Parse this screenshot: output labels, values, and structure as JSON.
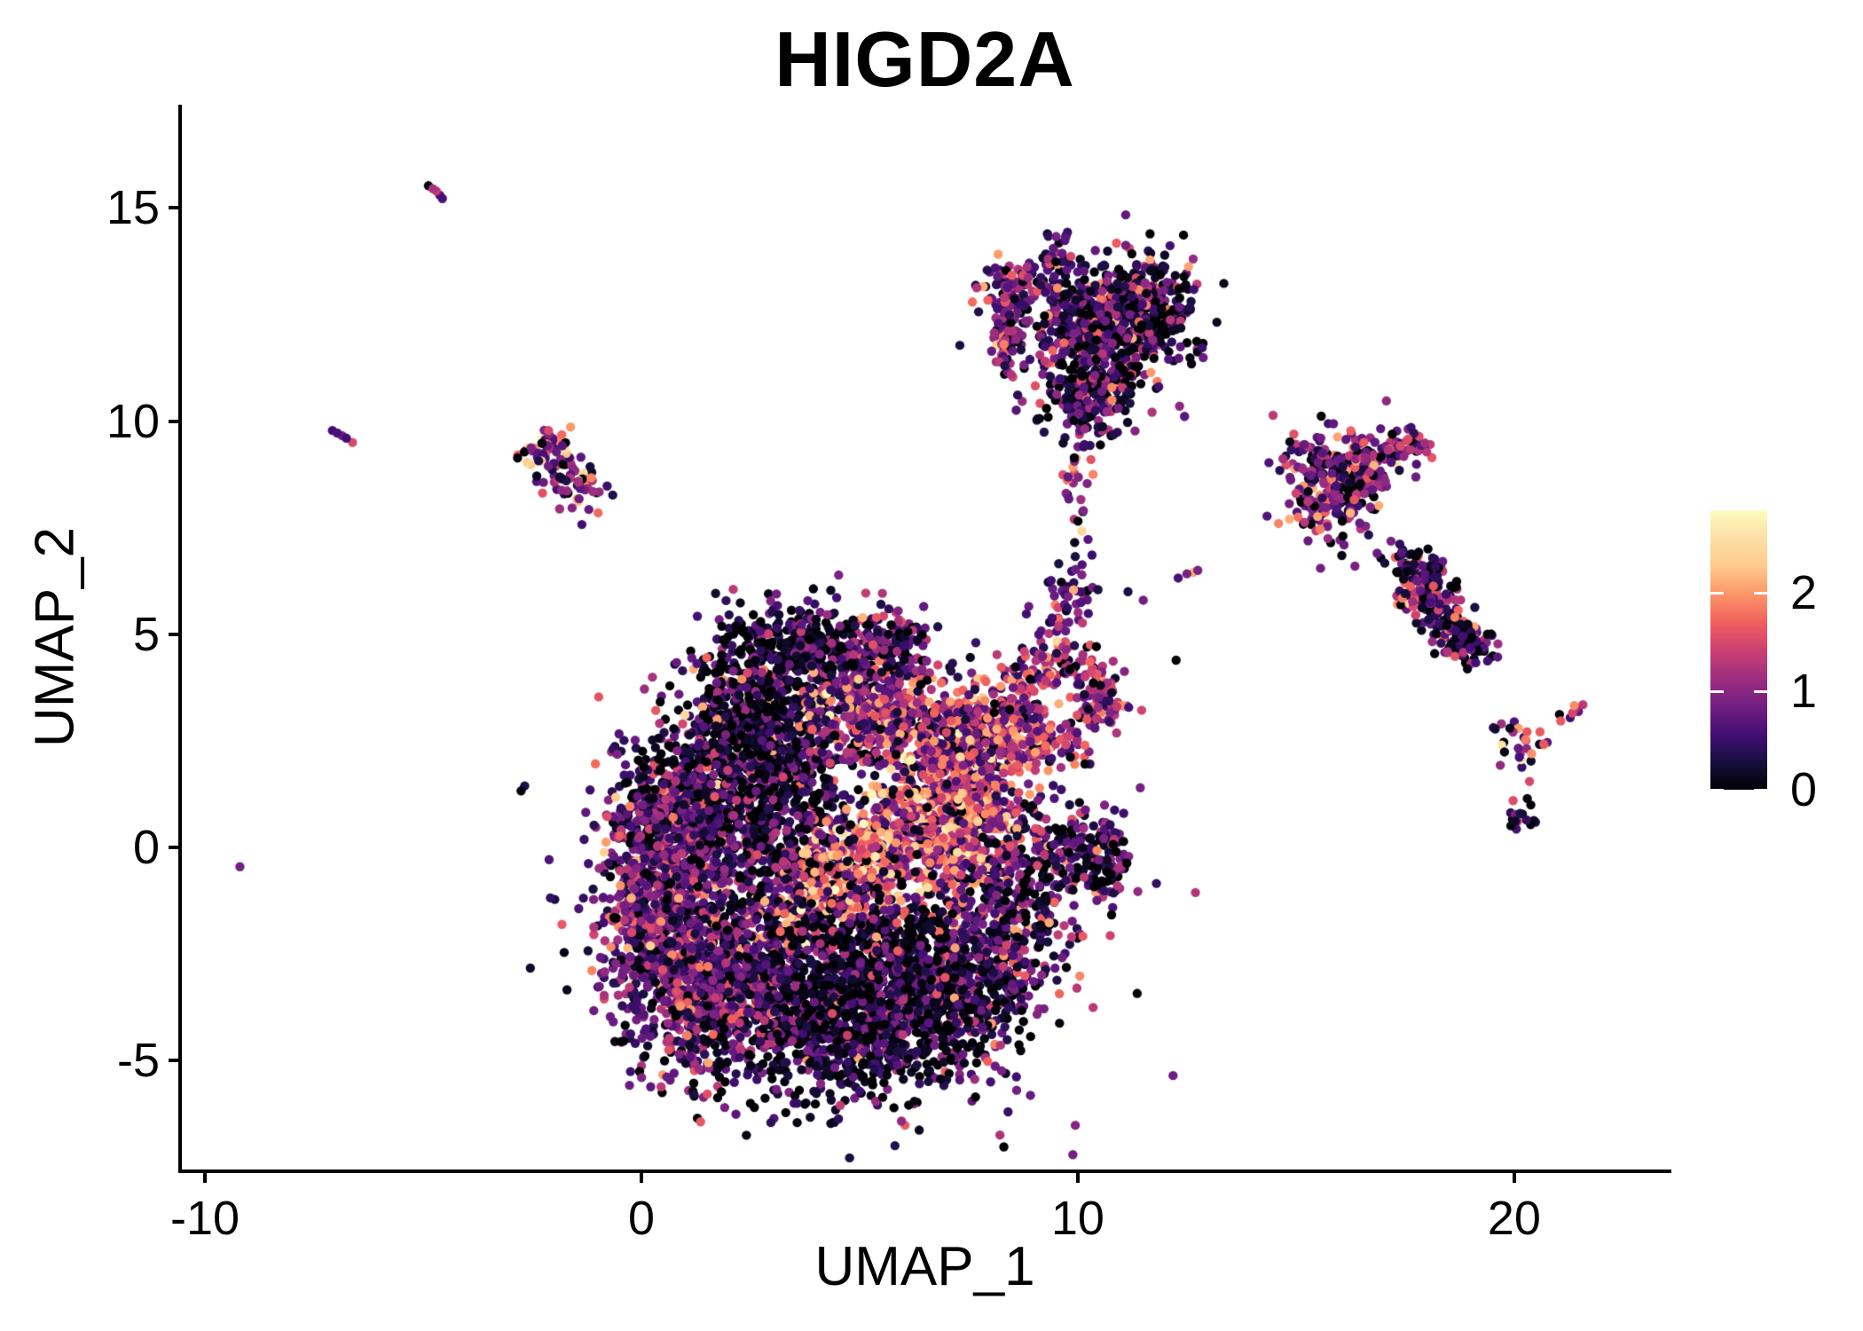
{
  "figure": {
    "background": "#ffffff"
  },
  "chart_data": {
    "type": "scatter",
    "title": "HIGD2A",
    "xlabel": "UMAP_1",
    "ylabel": "UMAP_2",
    "xlim": [
      -10.53,
      23.52
    ],
    "ylim": [
      -7.55,
      17.42
    ],
    "xticks": [
      "-10",
      "0",
      "10",
      "20"
    ],
    "xtick_values": [
      -10,
      0,
      10,
      20
    ],
    "yticks": [
      "-5",
      "0",
      "5",
      "10",
      "15"
    ],
    "ytick_values": [
      -5,
      0,
      5,
      10,
      15
    ],
    "grid": false,
    "point_radius_px": 5.2,
    "axis_color": "#000000",
    "text_color": "#000000",
    "legend": {
      "position": "right",
      "ticks": [
        "0",
        "1",
        "2"
      ],
      "tick_values": [
        0,
        1,
        2
      ],
      "vmin": 0,
      "vmax": 2.84
    },
    "colormap": {
      "name": "magma",
      "stops": [
        [
          0,
          "#000004"
        ],
        [
          0.1,
          "#180f3e"
        ],
        [
          0.2,
          "#440f76"
        ],
        [
          0.3,
          "#721f81"
        ],
        [
          0.4,
          "#9e2f7f"
        ],
        [
          0.5,
          "#cd4071"
        ],
        [
          0.6,
          "#f1605d"
        ],
        [
          0.7,
          "#fd9668"
        ],
        [
          0.8,
          "#feca8d"
        ],
        [
          0.9,
          "#fcdfa4"
        ],
        [
          1,
          "#fcfdbf"
        ]
      ]
    },
    "seed": 42,
    "expression_bins": [
      0.02,
      0.4,
      0.8,
      1.2,
      1.6,
      2.0,
      2.4,
      2.75
    ],
    "profiles": {
      "dark": [
        58,
        22,
        12,
        5,
        2,
        1,
        0,
        0
      ],
      "mixdark": [
        38,
        26,
        20,
        10,
        4,
        2,
        0,
        0
      ],
      "purple": [
        16,
        24,
        30,
        18,
        8,
        3,
        1,
        0
      ],
      "pinkish": [
        8,
        14,
        22,
        26,
        18,
        8,
        3,
        1
      ],
      "hot": [
        4,
        7,
        13,
        20,
        26,
        20,
        8,
        2
      ],
      "veryhot": [
        2,
        4,
        8,
        14,
        24,
        28,
        14,
        6
      ],
      "colorful": [
        14,
        16,
        18,
        16,
        14,
        12,
        7,
        3
      ],
      "bmain": [
        30,
        26,
        22,
        13,
        6,
        3,
        0,
        0
      ],
      "cblob": [
        12,
        14,
        20,
        20,
        14,
        12,
        6,
        2
      ],
      "gmain": [
        18,
        20,
        25,
        20,
        11,
        5,
        1,
        0
      ],
      "hprof": [
        32,
        27,
        22,
        13,
        5,
        1,
        0,
        0
      ],
      "iprof": [
        30,
        30,
        25,
        10,
        5,
        0,
        0,
        0
      ]
    },
    "clusters": [
      {
        "shape": "gauss",
        "c": [
          1.0,
          -1.3
        ],
        "s": [
          0.95,
          1.8
        ],
        "n": 1050,
        "profile": "purple"
      },
      {
        "shape": "gauss",
        "c": [
          0.1,
          -0.9
        ],
        "s": [
          0.45,
          1.2
        ],
        "n": 260,
        "profile": "purple"
      },
      {
        "shape": "gauss",
        "c": [
          0.8,
          1.0
        ],
        "s": [
          0.65,
          0.7
        ],
        "n": 260,
        "profile": "mixdark"
      },
      {
        "shape": "gauss",
        "c": [
          2.6,
          2.7
        ],
        "s": [
          0.85,
          0.95
        ],
        "n": 620,
        "profile": "dark"
      },
      {
        "shape": "gauss",
        "c": [
          3.7,
          4.7
        ],
        "s": [
          1.15,
          0.5
        ],
        "n": 340,
        "profile": "dark"
      },
      {
        "shape": "gauss",
        "c": [
          5.3,
          4.4
        ],
        "s": [
          0.75,
          0.55
        ],
        "n": 250,
        "profile": "purple"
      },
      {
        "shape": "gauss",
        "c": [
          5.5,
          3.0
        ],
        "s": [
          1.15,
          0.5
        ],
        "n": 380,
        "profile": "pinkish"
      },
      {
        "shape": "gauss",
        "c": [
          3.3,
          0.7
        ],
        "s": [
          0.95,
          1.0
        ],
        "n": 400,
        "profile": "dark"
      },
      {
        "shape": "line",
        "a": [
          3.3,
          -1.4
        ],
        "b": [
          6.2,
          0.5
        ],
        "w": 0.55,
        "n": 480,
        "profile": "veryhot"
      },
      {
        "shape": "gauss",
        "c": [
          7.0,
          0.7
        ],
        "s": [
          0.85,
          1.05
        ],
        "n": 650,
        "profile": "hot"
      },
      {
        "shape": "gauss",
        "c": [
          7.35,
          2.3
        ],
        "s": [
          0.5,
          0.7
        ],
        "n": 240,
        "profile": "pinkish"
      },
      {
        "shape": "gauss",
        "c": [
          4.8,
          -2.7
        ],
        "s": [
          1.35,
          0.95
        ],
        "n": 780,
        "profile": "dark"
      },
      {
        "shape": "gauss",
        "c": [
          4.7,
          -4.5
        ],
        "s": [
          1.45,
          0.75
        ],
        "n": 650,
        "profile": "dark"
      },
      {
        "shape": "gauss",
        "c": [
          2.0,
          -3.4
        ],
        "s": [
          1.05,
          0.8
        ],
        "n": 480,
        "profile": "purple"
      },
      {
        "shape": "gauss",
        "c": [
          7.2,
          -3.1
        ],
        "s": [
          1.0,
          0.9
        ],
        "n": 480,
        "profile": "mixdark"
      },
      {
        "shape": "gauss",
        "c": [
          8.6,
          -1.0
        ],
        "s": [
          0.75,
          1.15
        ],
        "n": 360,
        "profile": "mixdark"
      },
      {
        "shape": "gauss",
        "c": [
          10.4,
          -0.2
        ],
        "s": [
          0.45,
          0.62
        ],
        "n": 140,
        "profile": "mixdark"
      },
      {
        "shape": "gauss",
        "c": [
          4.8,
          -1.0
        ],
        "s": [
          2.9,
          2.5
        ],
        "n": 330,
        "profile": "mixdark"
      },
      {
        "shape": "ring",
        "c": [
          9.6,
          3.4
        ],
        "r": 1.05,
        "jit": 0.3,
        "arc": [
          -40,
          300
        ],
        "n": 330,
        "profile": "pinkish"
      },
      {
        "shape": "gauss",
        "c": [
          8.3,
          2.6
        ],
        "s": [
          0.5,
          0.6
        ],
        "n": 170,
        "profile": "hot"
      },
      {
        "shape": "line",
        "a": [
          9.45,
          5.1
        ],
        "b": [
          9.95,
          6.35
        ],
        "w": 0.3,
        "n": 55,
        "profile": "purple"
      },
      {
        "shape": "line",
        "a": [
          10.05,
          6.9
        ],
        "b": [
          9.85,
          8.55
        ],
        "w": 0.15,
        "n": 16,
        "profile": "purple"
      },
      {
        "shape": "gauss",
        "c": [
          10.55,
          12.35
        ],
        "s": [
          0.95,
          0.72
        ],
        "n": 600,
        "profile": "bmain"
      },
      {
        "shape": "line",
        "a": [
          8.3,
          11.3
        ],
        "b": [
          8.5,
          13.0
        ],
        "w": 0.18,
        "n": 80,
        "profile": "purple"
      },
      {
        "shape": "gauss",
        "c": [
          8.65,
          13.15
        ],
        "s": [
          0.42,
          0.33
        ],
        "n": 90,
        "profile": "purple"
      },
      {
        "shape": "gauss",
        "c": [
          9.6,
          14.15
        ],
        "s": [
          0.18,
          0.25
        ],
        "n": 14,
        "profile": "purple"
      },
      {
        "shape": "gauss",
        "c": [
          10.3,
          10.7
        ],
        "s": [
          0.6,
          0.52
        ],
        "n": 200,
        "profile": "mixdark"
      },
      {
        "shape": "line",
        "a": [
          10.1,
          10.0
        ],
        "b": [
          9.85,
          8.6
        ],
        "w": 0.12,
        "n": 14,
        "profile": "mixdark"
      },
      {
        "shape": "gauss",
        "c": [
          11.75,
          12.7
        ],
        "s": [
          0.45,
          0.7
        ],
        "n": 130,
        "profile": "dark"
      },
      {
        "shape": "line",
        "a": [
          -2.75,
          9.2
        ],
        "b": [
          -1.85,
          9.55
        ],
        "w": 0.2,
        "n": 45,
        "profile": "colorful"
      },
      {
        "shape": "gauss",
        "c": [
          -1.95,
          8.85
        ],
        "s": [
          0.3,
          0.28
        ],
        "n": 28,
        "profile": "purple"
      },
      {
        "shape": "gauss",
        "c": [
          -1.35,
          8.35
        ],
        "s": [
          0.36,
          0.26
        ],
        "n": 40,
        "profile": "cblob"
      },
      {
        "shape": "gauss",
        "c": [
          16.1,
          8.9
        ],
        "s": [
          0.72,
          0.5
        ],
        "n": 220,
        "profile": "gmain"
      },
      {
        "shape": "line",
        "a": [
          16.75,
          9.1
        ],
        "b": [
          17.95,
          9.6
        ],
        "w": 0.18,
        "n": 60,
        "profile": "pinkish"
      },
      {
        "shape": "gauss",
        "c": [
          15.85,
          7.95
        ],
        "s": [
          0.42,
          0.42
        ],
        "n": 75,
        "profile": "purple"
      },
      {
        "shape": "points",
        "pts": [
          [
            14.85,
            7.7,
            2.1
          ],
          [
            15.05,
            7.75,
            1.8
          ],
          [
            15.35,
            7.95,
            0.9
          ],
          [
            15.6,
            8.2,
            0.4
          ],
          [
            14.6,
            7.6,
            1.9
          ],
          [
            16.1,
            7.1,
            0.8
          ],
          [
            16.35,
            6.6,
            0.9
          ],
          [
            16.05,
            6.85,
            0.1
          ]
        ]
      },
      {
        "shape": "line",
        "a": [
          17.35,
          6.75
        ],
        "b": [
          18.1,
          6.2
        ],
        "w": 0.28,
        "n": 90,
        "profile": "hprof"
      },
      {
        "shape": "line",
        "a": [
          18.1,
          6.2
        ],
        "b": [
          18.25,
          5.35
        ],
        "w": 0.28,
        "n": 80,
        "profile": "hprof"
      },
      {
        "shape": "line",
        "a": [
          18.25,
          5.35
        ],
        "b": [
          19.3,
          4.65
        ],
        "w": 0.3,
        "n": 110,
        "profile": "hprof"
      },
      {
        "shape": "gauss",
        "c": [
          17.6,
          5.75
        ],
        "s": [
          0.2,
          0.2
        ],
        "n": 14,
        "profile": "pinkish"
      },
      {
        "shape": "gauss",
        "c": [
          20.1,
          2.45
        ],
        "s": [
          0.28,
          0.3
        ],
        "n": 26,
        "profile": "colorful"
      },
      {
        "shape": "line",
        "a": [
          21.1,
          3.0
        ],
        "b": [
          21.6,
          3.35
        ],
        "w": 0.1,
        "n": 8,
        "profile": "pinkish"
      },
      {
        "shape": "points",
        "pts": [
          [
            20.35,
            1.55,
            1.5
          ],
          [
            20.3,
            1.15,
            0.05
          ],
          [
            20.38,
            1.0,
            0.05
          ],
          [
            20.0,
            2.95,
            0.6
          ],
          [
            19.9,
            2.8,
            0.1
          ]
        ]
      },
      {
        "shape": "gauss",
        "c": [
          20.15,
          0.8
        ],
        "s": [
          0.2,
          0.26
        ],
        "n": 15,
        "profile": "iprof"
      },
      {
        "shape": "points",
        "pts": [
          [
            -4.88,
            15.52,
            0.05
          ],
          [
            -4.78,
            15.45,
            1.2
          ],
          [
            -4.7,
            15.4,
            1.35
          ],
          [
            -4.62,
            15.3,
            0.6
          ],
          [
            -4.56,
            15.22,
            0.6
          ]
        ]
      },
      {
        "shape": "points",
        "pts": [
          [
            -7.08,
            9.78,
            0.55
          ],
          [
            -6.97,
            9.72,
            0.6
          ],
          [
            -6.86,
            9.66,
            0.85
          ],
          [
            -6.76,
            9.6,
            0.55
          ],
          [
            -6.62,
            9.5,
            1.5
          ]
        ]
      },
      {
        "shape": "points",
        "pts": [
          [
            -9.2,
            -0.45,
            0.85
          ]
        ]
      },
      {
        "shape": "points",
        "pts": [
          [
            12.3,
            6.32,
            0.6
          ],
          [
            12.5,
            6.42,
            0.9
          ],
          [
            12.65,
            6.45,
            2.1
          ],
          [
            12.75,
            6.5,
            0.9
          ],
          [
            11.5,
            5.8,
            0.85
          ],
          [
            11.15,
            6.0,
            0.3
          ],
          [
            10.35,
            8.75,
            1.9
          ],
          [
            10.3,
            9.1,
            1.6
          ],
          [
            10.15,
            9.45,
            0.5
          ]
        ]
      }
    ]
  }
}
